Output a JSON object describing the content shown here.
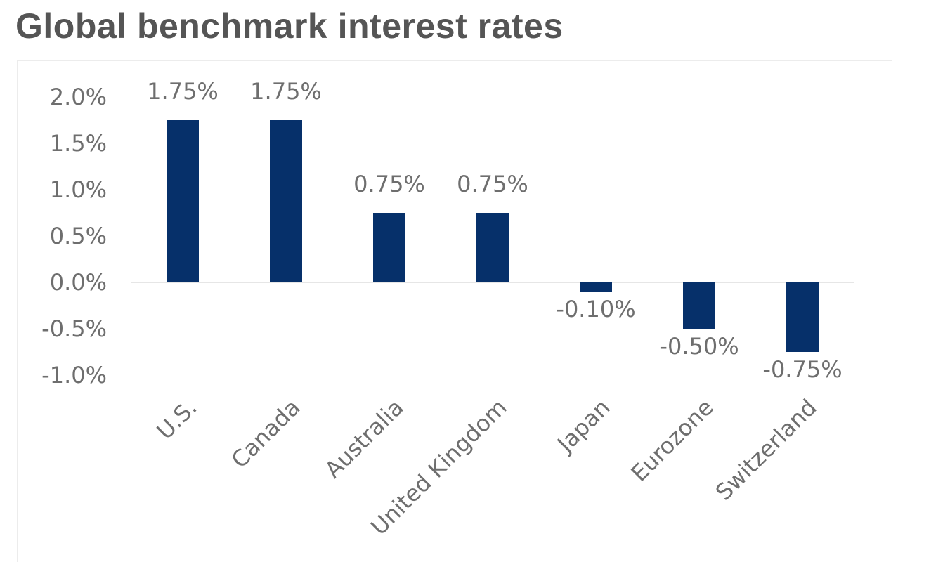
{
  "title": "Global benchmark interest rates",
  "colors": {
    "bar": "#06306a",
    "axis_line": "#e6e6e6",
    "text": "#6e6e6e",
    "title": "#555555"
  },
  "chart_data": {
    "type": "bar",
    "title": "Global benchmark interest rates",
    "xlabel": "",
    "ylabel": "",
    "categories": [
      "U.S.",
      "Canada",
      "Australia",
      "United Kingdom",
      "Japan",
      "Eurozone",
      "Switzerland"
    ],
    "values": [
      1.75,
      1.75,
      0.75,
      0.75,
      -0.1,
      -0.5,
      -0.75
    ],
    "data_labels": [
      "1.75%",
      "1.75%",
      "0.75%",
      "0.75%",
      "-0.10%",
      "-0.50%",
      "-0.75%"
    ],
    "ylim": [
      -1.0,
      2.0
    ],
    "y_ticks": [
      2.0,
      1.5,
      1.0,
      0.5,
      0.0,
      -0.5,
      -1.0
    ],
    "y_tick_labels": [
      "2.0%",
      "1.5%",
      "1.0%",
      "0.5%",
      "0.0%",
      "-0.5%",
      "-1.0%"
    ],
    "grid": false,
    "legend": "none"
  }
}
